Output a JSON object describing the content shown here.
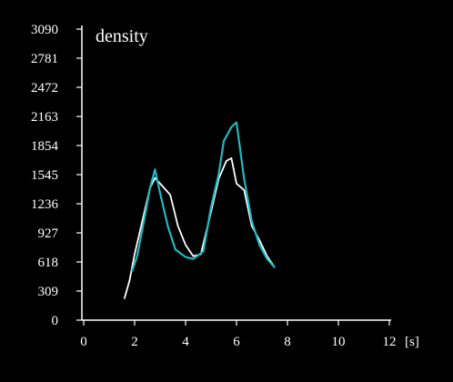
{
  "chart_data": {
    "type": "line",
    "title": "density",
    "xlabel": "[s]",
    "ylabel": "",
    "xlim": [
      0,
      12
    ],
    "ylim": [
      0,
      3090
    ],
    "x_ticks": [
      "0",
      "2",
      "4",
      "6",
      "8",
      "10",
      "12"
    ],
    "y_ticks": [
      "0",
      "309",
      "618",
      "927",
      "1236",
      "1545",
      "1854",
      "2163",
      "2472",
      "2781",
      "3090"
    ],
    "grid": false,
    "legend": "none",
    "series": [
      {
        "color": "#ffffff",
        "points": [
          [
            1.6,
            230
          ],
          [
            1.8,
            420
          ],
          [
            2.0,
            700
          ],
          [
            2.3,
            1050
          ],
          [
            2.6,
            1400
          ],
          [
            2.8,
            1510
          ],
          [
            3.1,
            1420
          ],
          [
            3.4,
            1330
          ],
          [
            3.7,
            1000
          ],
          [
            4.0,
            800
          ],
          [
            4.3,
            680
          ],
          [
            4.6,
            700
          ],
          [
            5.0,
            1150
          ],
          [
            5.3,
            1500
          ],
          [
            5.6,
            1690
          ],
          [
            5.8,
            1720
          ],
          [
            6.0,
            1450
          ],
          [
            6.3,
            1380
          ],
          [
            6.6,
            1000
          ],
          [
            6.9,
            850
          ],
          [
            7.2,
            680
          ],
          [
            7.5,
            560
          ]
        ]
      },
      {
        "color": "#20b8c0",
        "points": [
          [
            1.9,
            520
          ],
          [
            2.1,
            680
          ],
          [
            2.4,
            1100
          ],
          [
            2.6,
            1400
          ],
          [
            2.8,
            1600
          ],
          [
            3.0,
            1350
          ],
          [
            3.3,
            1000
          ],
          [
            3.6,
            750
          ],
          [
            4.0,
            670
          ],
          [
            4.3,
            650
          ],
          [
            4.7,
            730
          ],
          [
            5.0,
            1200
          ],
          [
            5.3,
            1550
          ],
          [
            5.5,
            1900
          ],
          [
            5.8,
            2050
          ],
          [
            6.0,
            2100
          ],
          [
            6.3,
            1500
          ],
          [
            6.6,
            1050
          ],
          [
            6.9,
            800
          ],
          [
            7.2,
            650
          ],
          [
            7.5,
            560
          ]
        ]
      }
    ]
  }
}
